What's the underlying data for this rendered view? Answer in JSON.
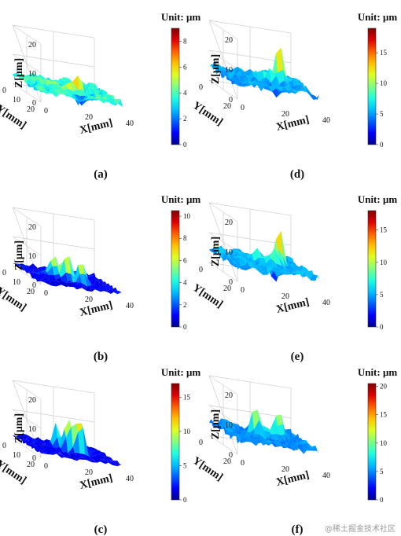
{
  "figure": {
    "watermark": "@稀土掘金技术社区",
    "axis_labels": {
      "z": "Z[μm]",
      "y": "Y[mm]",
      "x": "X[mm]"
    },
    "colormap": [
      "#00008f",
      "#0000ff",
      "#0060ff",
      "#00c0ff",
      "#20ffdf",
      "#80ff80",
      "#dfff20",
      "#ffc000",
      "#ff6000",
      "#e00000",
      "#800000"
    ]
  },
  "chart_data": [
    {
      "panel": "(a)",
      "type": "surface",
      "unit_label": "Unit: μm",
      "zlim": [
        0,
        20
      ],
      "zticks": [
        "0",
        "10",
        "20"
      ],
      "yticks": [
        "0",
        "10",
        "20"
      ],
      "xticks": [
        "0",
        "20",
        "40"
      ],
      "colorbar": {
        "range": [
          0,
          9
        ],
        "ticks": [
          "0",
          "2",
          "4",
          "6",
          "8"
        ]
      },
      "surface": {
        "base_height": 3.6,
        "roughness": 1.3,
        "peaks": [
          [
            0.62,
            0.52,
            5.5
          ],
          [
            0.48,
            0.38,
            4.0
          ],
          [
            0.3,
            0.6,
            3.0
          ]
        ],
        "pits": [
          [
            0.55,
            0.2,
            3.5
          ],
          [
            0.75,
            0.4,
            3.0
          ],
          [
            0.5,
            0.1,
            2.5
          ]
        ]
      }
    },
    {
      "panel": "(b)",
      "type": "surface",
      "unit_label": "Unit: μm",
      "zlim": [
        0,
        20
      ],
      "zticks": [
        "0",
        "10",
        "20"
      ],
      "yticks": [
        "0",
        "10",
        "20"
      ],
      "xticks": [
        "0",
        "20",
        "40"
      ],
      "colorbar": {
        "range": [
          0,
          10.5
        ],
        "ticks": [
          "0",
          "2",
          "4",
          "6",
          "8",
          "10"
        ]
      },
      "surface": {
        "base_height": 1.0,
        "roughness": 0.9,
        "peaks": [
          [
            0.47,
            0.45,
            10.0
          ],
          [
            0.6,
            0.3,
            8.5
          ],
          [
            0.35,
            0.55,
            7.0
          ],
          [
            0.55,
            0.62,
            5.0
          ]
        ],
        "pits": []
      }
    },
    {
      "panel": "(c)",
      "type": "surface",
      "unit_label": "Unit: μm",
      "zlim": [
        0,
        20
      ],
      "zticks": [
        "0",
        "10",
        "20"
      ],
      "yticks": [
        "0",
        "10",
        "20"
      ],
      "xticks": [
        "0",
        "20",
        "40"
      ],
      "colorbar": {
        "range": [
          0,
          17
        ],
        "ticks": [
          "0",
          "5",
          "10",
          "15"
        ]
      },
      "surface": {
        "base_height": 1.5,
        "roughness": 0.8,
        "peaks": [
          [
            0.48,
            0.42,
            13.0
          ],
          [
            0.6,
            0.35,
            15.0
          ],
          [
            0.38,
            0.55,
            8.0
          ]
        ],
        "pits": []
      }
    },
    {
      "panel": "(d)",
      "type": "surface",
      "unit_label": "Unit: μm",
      "zlim": [
        0,
        20
      ],
      "zticks": [
        "0",
        "10",
        "20"
      ],
      "yticks": [
        "0",
        "20"
      ],
      "xticks": [
        "0",
        "20",
        "40"
      ],
      "colorbar": {
        "range": [
          0,
          19
        ],
        "ticks": [
          "0",
          "5",
          "10",
          "15"
        ]
      },
      "surface": {
        "base_height": 5.0,
        "roughness": 1.6,
        "peaks": [
          [
            0.72,
            0.62,
            13.0
          ],
          [
            0.6,
            0.5,
            5.0
          ],
          [
            0.45,
            0.58,
            3.5
          ]
        ],
        "pits": [
          [
            0.55,
            0.25,
            3.0
          ],
          [
            0.35,
            0.35,
            2.5
          ]
        ]
      }
    },
    {
      "panel": "(e)",
      "type": "surface",
      "unit_label": "Unit: μm",
      "zlim": [
        0,
        20
      ],
      "zticks": [
        "0",
        "10",
        "20"
      ],
      "yticks": [
        "0",
        "20"
      ],
      "xticks": [
        "0",
        "20",
        "40"
      ],
      "colorbar": {
        "range": [
          0,
          18
        ],
        "ticks": [
          "0",
          "5",
          "10",
          "15"
        ]
      },
      "surface": {
        "base_height": 5.0,
        "roughness": 1.6,
        "peaks": [
          [
            0.72,
            0.62,
            12.0
          ],
          [
            0.62,
            0.5,
            6.0
          ],
          [
            0.45,
            0.55,
            4.0
          ]
        ],
        "pits": [
          [
            0.55,
            0.25,
            3.0
          ]
        ]
      }
    },
    {
      "panel": "(f)",
      "type": "surface",
      "unit_label": "Unit: μm",
      "zlim": [
        0,
        20
      ],
      "zticks": [
        "0",
        "10",
        "20"
      ],
      "yticks": [
        "0",
        "20"
      ],
      "xticks": [
        "0",
        "20",
        "40"
      ],
      "colorbar": {
        "range": [
          0,
          20.5
        ],
        "ticks": [
          "0",
          "5",
          "10",
          "15",
          "20"
        ]
      },
      "surface": {
        "base_height": 5.0,
        "roughness": 1.6,
        "peaks": [
          [
            0.72,
            0.62,
            11.0
          ],
          [
            0.42,
            0.55,
            10.0
          ],
          [
            0.62,
            0.5,
            6.0
          ]
        ],
        "pits": [
          [
            0.55,
            0.25,
            3.0
          ]
        ]
      }
    }
  ]
}
